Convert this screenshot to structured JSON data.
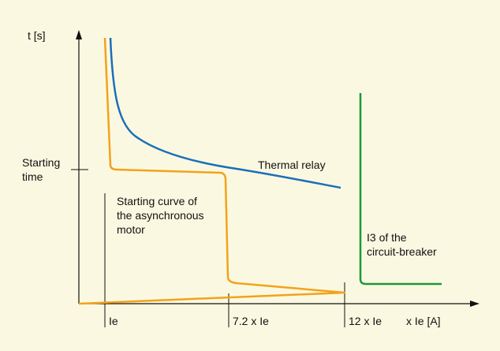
{
  "axes": {
    "y_label": "t [s]",
    "x_label": "x Ie [A]"
  },
  "y_marker": [
    "Starting",
    "time"
  ],
  "x_markers": [
    "Ie",
    "7.2 x Ie",
    "12 x Ie"
  ],
  "curves": [
    {
      "label": [
        "Thermal relay"
      ]
    },
    {
      "label": [
        "Starting curve of",
        "the asynchronous",
        "motor"
      ]
    },
    {
      "label": [
        "I3 of the",
        "circuit-breaker"
      ]
    }
  ]
}
